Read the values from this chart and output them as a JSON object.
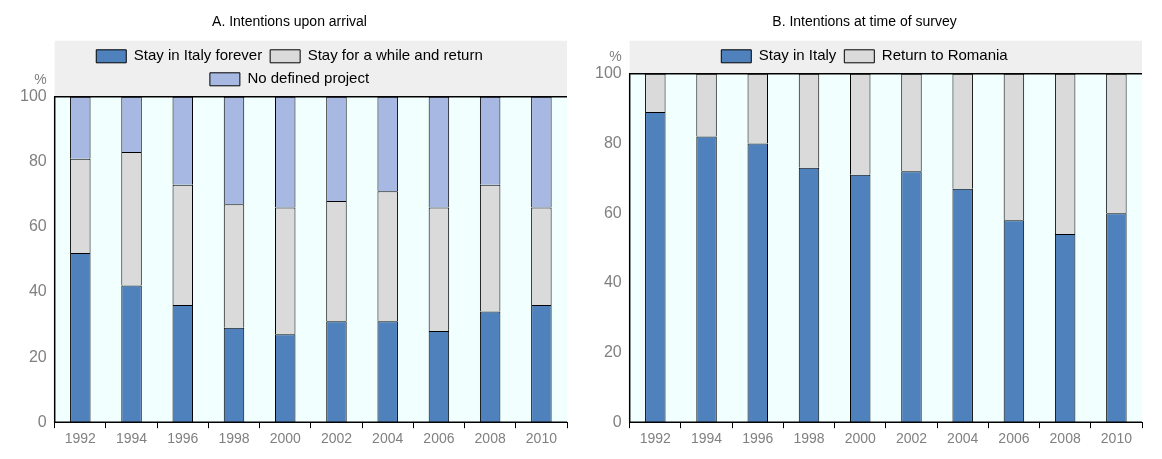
{
  "chart_data": [
    {
      "type": "bar",
      "title": "A. Intentions upon arrival",
      "ylabel": "%",
      "categories": [
        "1992",
        "1994",
        "1996",
        "1998",
        "2000",
        "2002",
        "2004",
        "2006",
        "2008",
        "2010"
      ],
      "stacked": true,
      "legend": "top",
      "grid": false,
      "ylim": [
        0,
        100
      ],
      "yticks": [
        0,
        20,
        40,
        60,
        80,
        100
      ],
      "series": [
        {
          "name": "Stay in Italy forever",
          "color": "#4f81bd",
          "values": [
            52,
            42,
            36,
            29,
            27,
            31,
            31,
            28,
            34,
            36
          ]
        },
        {
          "name": "Stay for a while and return",
          "color": "#dadada",
          "values": [
            29,
            41,
            37,
            38,
            39,
            37,
            40,
            38,
            39,
            30
          ]
        },
        {
          "name": "No defined project",
          "color": "#a7b9e3",
          "values": [
            19,
            17,
            27,
            33,
            34,
            32,
            29,
            34,
            27,
            34
          ]
        }
      ]
    },
    {
      "type": "bar",
      "title": "B. Intentions at time of survey",
      "ylabel": "%",
      "categories": [
        "1992",
        "1994",
        "1996",
        "1998",
        "2000",
        "2002",
        "2004",
        "2006",
        "2008",
        "2010"
      ],
      "stacked": true,
      "legend": "top",
      "grid": false,
      "ylim": [
        0,
        100
      ],
      "yticks": [
        0,
        20,
        40,
        60,
        80,
        100
      ],
      "series": [
        {
          "name": "Stay in Italy",
          "color": "#4f81bd",
          "values": [
            89,
            82,
            80,
            73,
            71,
            72,
            67,
            58,
            54,
            60
          ]
        },
        {
          "name": "Return to Romania",
          "color": "#dadada",
          "values": [
            11,
            18,
            20,
            27,
            29,
            28,
            33,
            42,
            46,
            40
          ]
        }
      ]
    }
  ]
}
